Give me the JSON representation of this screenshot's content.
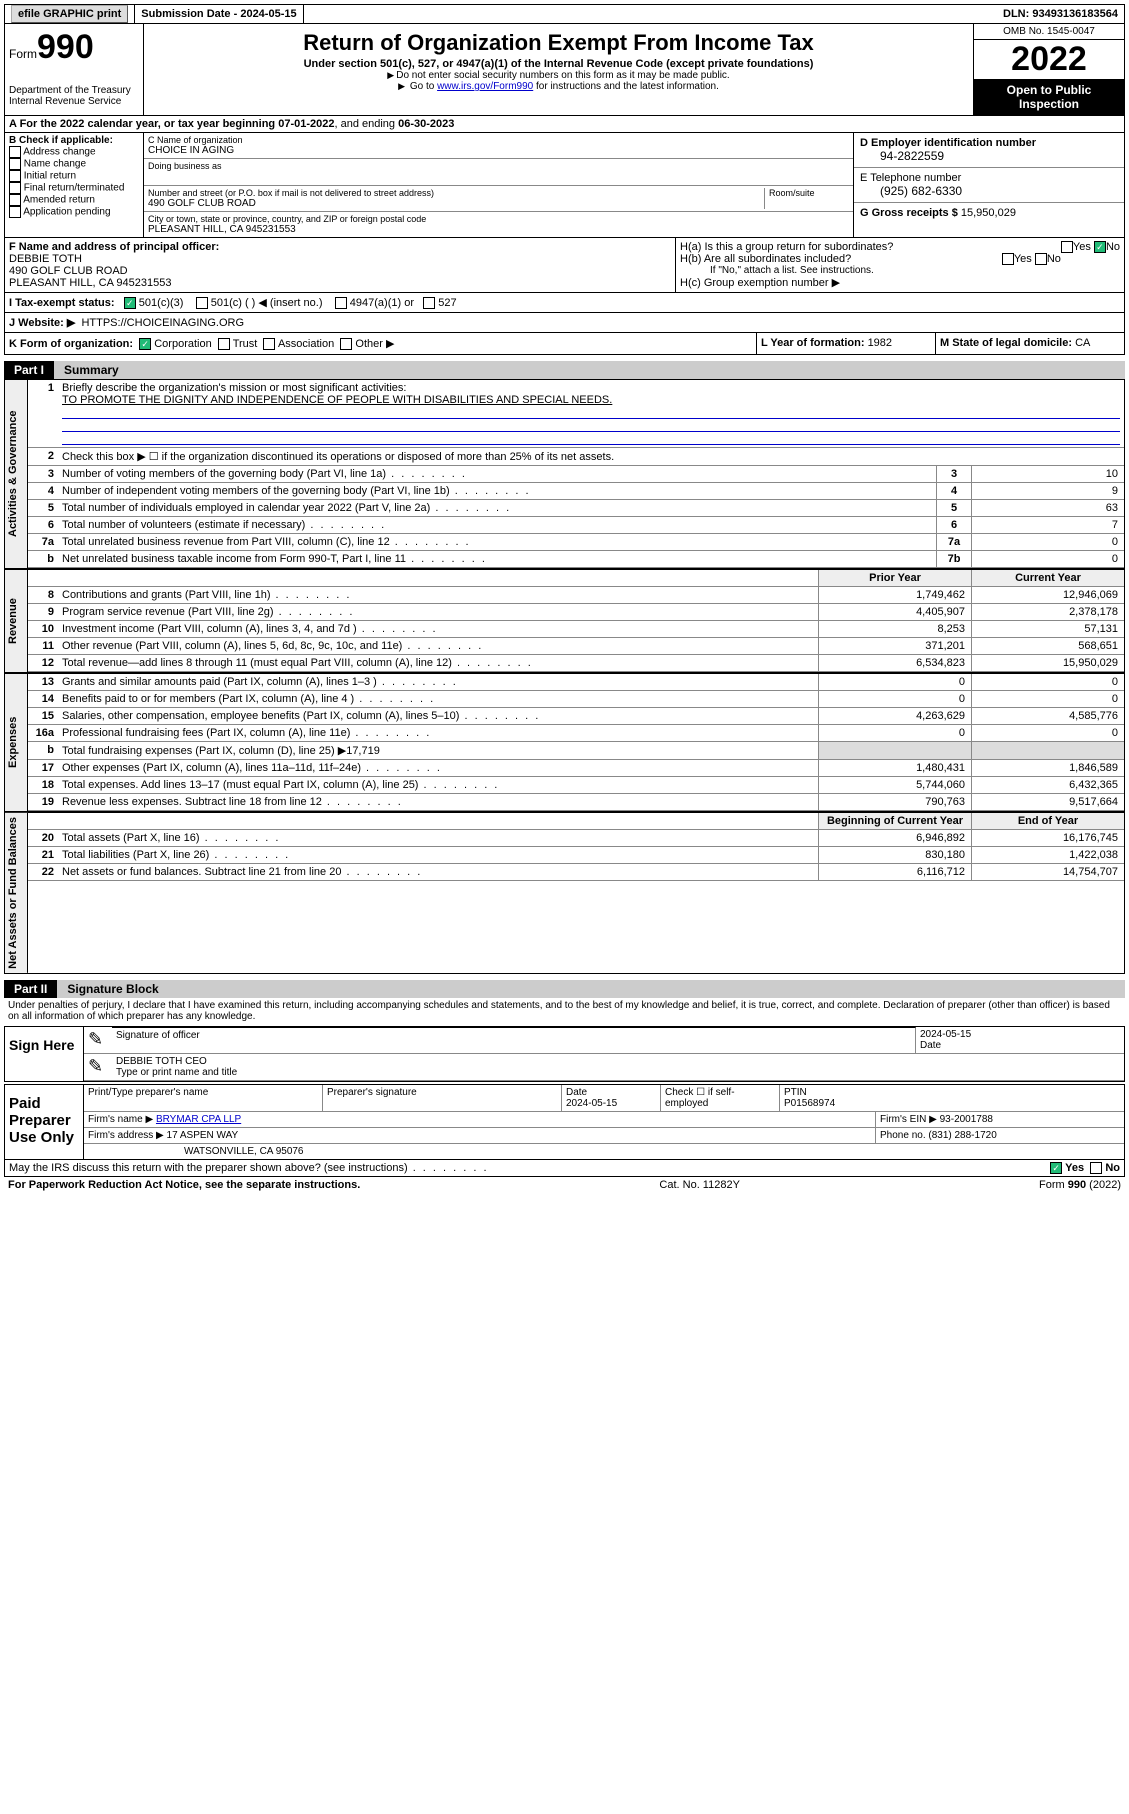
{
  "topbar": {
    "efile": "efile GRAPHIC print",
    "submission_label": "Submission Date - ",
    "submission_date": "2024-05-15",
    "dln_label": "DLN: ",
    "dln": "93493136183564"
  },
  "header": {
    "form_label": "Form",
    "form_number": "990",
    "dept": "Department of the Treasury",
    "irs": "Internal Revenue Service",
    "title": "Return of Organization Exempt From Income Tax",
    "subtitle": "Under section 501(c), 527, or 4947(a)(1) of the Internal Revenue Code (except private foundations)",
    "note1": "Do not enter social security numbers on this form as it may be made public.",
    "note2_prefix": "Go to ",
    "note2_link": "www.irs.gov/Form990",
    "note2_suffix": " for instructions and the latest information.",
    "omb": "OMB No. 1545-0047",
    "year": "2022",
    "otp": "Open to Public Inspection"
  },
  "line_a": {
    "prefix": "A For the 2022 calendar year, or tax year beginning ",
    "begin": "07-01-2022",
    "mid": ", and ending ",
    "end": "06-30-2023"
  },
  "box_b": {
    "title": "B Check if applicable:",
    "items": [
      "Address change",
      "Name change",
      "Initial return",
      "Final return/terminated",
      "Amended return",
      "Application pending"
    ]
  },
  "box_c": {
    "name_label": "C Name of organization",
    "name": "CHOICE IN AGING",
    "dba_label": "Doing business as",
    "addr_label": "Number and street (or P.O. box if mail is not delivered to street address)",
    "room_label": "Room/suite",
    "addr": "490 GOLF CLUB ROAD",
    "city_label": "City or town, state or province, country, and ZIP or foreign postal code",
    "city": "PLEASANT HILL, CA  945231553"
  },
  "box_d": {
    "label": "D Employer identification number",
    "value": "94-2822559"
  },
  "box_e": {
    "label": "E Telephone number",
    "value": "(925) 682-6330"
  },
  "box_g": {
    "label": "G Gross receipts $ ",
    "value": "15,950,029"
  },
  "box_f": {
    "label": "F Name and address of principal officer:",
    "name": "DEBBIE TOTH",
    "addr1": "490 GOLF CLUB ROAD",
    "addr2": "PLEASANT HILL, CA  945231553"
  },
  "box_h": {
    "ha": "H(a)  Is this a group return for subordinates?",
    "hb": "H(b)  Are all subordinates included?",
    "hb_note": "If \"No,\" attach a list. See instructions.",
    "hc": "H(c)  Group exemption number ▶",
    "yes": "Yes",
    "no": "No"
  },
  "box_i": {
    "label": "I    Tax-exempt status:",
    "o1": "501(c)(3)",
    "o2": "501(c) (   ) ◀ (insert no.)",
    "o3": "4947(a)(1) or",
    "o4": "527"
  },
  "box_j": {
    "label": "J    Website: ▶",
    "value": "HTTPS://CHOICEINAGING.ORG"
  },
  "box_k": {
    "label": "K Form of organization:",
    "o1": "Corporation",
    "o2": "Trust",
    "o3": "Association",
    "o4": "Other ▶"
  },
  "box_l": {
    "label": "L Year of formation: ",
    "value": "1982"
  },
  "box_m": {
    "label": "M State of legal domicile: ",
    "value": "CA"
  },
  "part1": {
    "label": "Part I",
    "title": "Summary",
    "tab_gov": "Activities & Governance",
    "tab_rev": "Revenue",
    "tab_exp": "Expenses",
    "tab_net": "Net Assets or Fund Balances",
    "line1_label": "Briefly describe the organization's mission or most significant activities:",
    "line1_value": "TO PROMOTE THE DIGNITY AND INDEPENDENCE OF PEOPLE WITH DISABILITIES AND SPECIAL NEEDS.",
    "line2": "Check this box ▶ ☐ if the organization discontinued its operations or disposed of more than 25% of its net assets.",
    "col_prior": "Prior Year",
    "col_current": "Current Year",
    "col_begin": "Beginning of Current Year",
    "col_end": "End of Year",
    "rows_gov": [
      {
        "n": "3",
        "d": "Number of voting members of the governing body (Part VI, line 1a)",
        "r": "3",
        "v": "10"
      },
      {
        "n": "4",
        "d": "Number of independent voting members of the governing body (Part VI, line 1b)",
        "r": "4",
        "v": "9"
      },
      {
        "n": "5",
        "d": "Total number of individuals employed in calendar year 2022 (Part V, line 2a)",
        "r": "5",
        "v": "63"
      },
      {
        "n": "6",
        "d": "Total number of volunteers (estimate if necessary)",
        "r": "6",
        "v": "7"
      },
      {
        "n": "7a",
        "d": "Total unrelated business revenue from Part VIII, column (C), line 12",
        "r": "7a",
        "v": "0"
      },
      {
        "n": "b",
        "d": "Net unrelated business taxable income from Form 990-T, Part I, line 11",
        "r": "7b",
        "v": "0"
      }
    ],
    "rows_rev": [
      {
        "n": "8",
        "d": "Contributions and grants (Part VIII, line 1h)",
        "p": "1,749,462",
        "c": "12,946,069"
      },
      {
        "n": "9",
        "d": "Program service revenue (Part VIII, line 2g)",
        "p": "4,405,907",
        "c": "2,378,178"
      },
      {
        "n": "10",
        "d": "Investment income (Part VIII, column (A), lines 3, 4, and 7d )",
        "p": "8,253",
        "c": "57,131"
      },
      {
        "n": "11",
        "d": "Other revenue (Part VIII, column (A), lines 5, 6d, 8c, 9c, 10c, and 11e)",
        "p": "371,201",
        "c": "568,651"
      },
      {
        "n": "12",
        "d": "Total revenue—add lines 8 through 11 (must equal Part VIII, column (A), line 12)",
        "p": "6,534,823",
        "c": "15,950,029"
      }
    ],
    "rows_exp": [
      {
        "n": "13",
        "d": "Grants and similar amounts paid (Part IX, column (A), lines 1–3 )",
        "p": "0",
        "c": "0"
      },
      {
        "n": "14",
        "d": "Benefits paid to or for members (Part IX, column (A), line 4 )",
        "p": "0",
        "c": "0"
      },
      {
        "n": "15",
        "d": "Salaries, other compensation, employee benefits (Part IX, column (A), lines 5–10)",
        "p": "4,263,629",
        "c": "4,585,776"
      },
      {
        "n": "16a",
        "d": "Professional fundraising fees (Part IX, column (A), line 11e)",
        "p": "0",
        "c": "0"
      },
      {
        "n": "b",
        "d": "Total fundraising expenses (Part IX, column (D), line 25) ▶17,719",
        "p": "",
        "c": ""
      },
      {
        "n": "17",
        "d": "Other expenses (Part IX, column (A), lines 11a–11d, 11f–24e)",
        "p": "1,480,431",
        "c": "1,846,589"
      },
      {
        "n": "18",
        "d": "Total expenses. Add lines 13–17 (must equal Part IX, column (A), line 25)",
        "p": "5,744,060",
        "c": "6,432,365"
      },
      {
        "n": "19",
        "d": "Revenue less expenses. Subtract line 18 from line 12",
        "p": "790,763",
        "c": "9,517,664"
      }
    ],
    "rows_net": [
      {
        "n": "20",
        "d": "Total assets (Part X, line 16)",
        "p": "6,946,892",
        "c": "16,176,745"
      },
      {
        "n": "21",
        "d": "Total liabilities (Part X, line 26)",
        "p": "830,180",
        "c": "1,422,038"
      },
      {
        "n": "22",
        "d": "Net assets or fund balances. Subtract line 21 from line 20",
        "p": "6,116,712",
        "c": "14,754,707"
      }
    ]
  },
  "part2": {
    "label": "Part II",
    "title": "Signature Block",
    "declaration": "Under penalties of perjury, I declare that I have examined this return, including accompanying schedules and statements, and to the best of my knowledge and belief, it is true, correct, and complete. Declaration of preparer (other than officer) is based on all information of which preparer has any knowledge."
  },
  "sign": {
    "here": "Sign Here",
    "sig_officer": "Signature of officer",
    "date": "Date",
    "date_val": "2024-05-15",
    "name": "DEBBIE TOTH CEO",
    "name_label": "Type or print name and title"
  },
  "paid": {
    "label": "Paid Preparer Use Only",
    "col1": "Print/Type preparer's name",
    "col2": "Preparer's signature",
    "col3": "Date",
    "col3_val": "2024-05-15",
    "col4": "Check ☐ if self-employed",
    "col5": "PTIN",
    "col5_val": "P01568974",
    "firm_name_label": "Firm's name    ▶ ",
    "firm_name": "BRYMAR CPA LLP",
    "firm_ein_label": "Firm's EIN ▶ ",
    "firm_ein": "93-2001788",
    "firm_addr_label": "Firm's address ▶ ",
    "firm_addr1": "17 ASPEN WAY",
    "firm_addr2": "WATSONVILLE, CA  95076",
    "phone_label": "Phone no. ",
    "phone": "(831) 288-1720"
  },
  "footer": {
    "discuss": "May the IRS discuss this return with the preparer shown above? (see instructions)",
    "yes": "Yes",
    "no": "No",
    "pra": "For Paperwork Reduction Act Notice, see the separate instructions.",
    "cat": "Cat. No. 11282Y",
    "form": "Form 990 (2022)"
  }
}
